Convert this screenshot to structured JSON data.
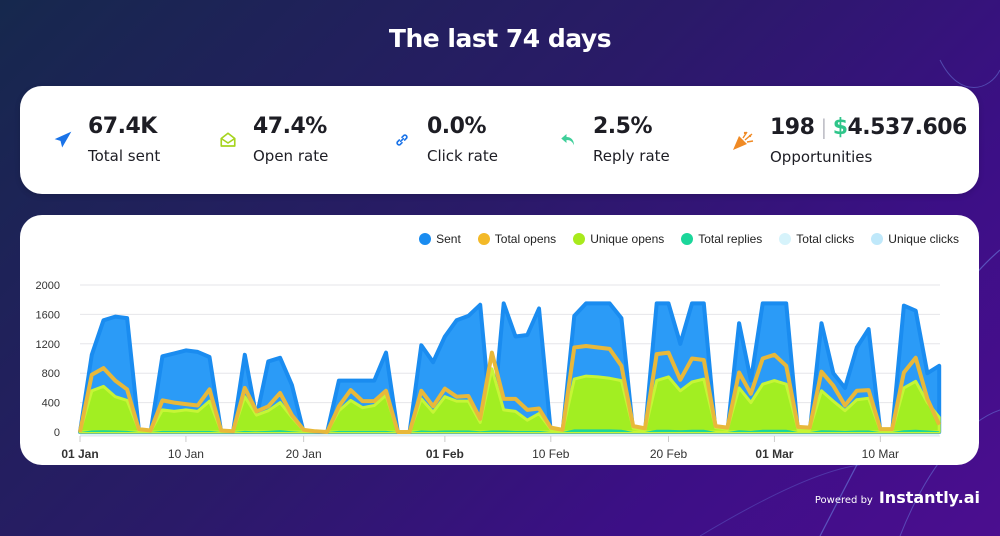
{
  "header": {
    "title": "The last 74 days"
  },
  "stats": [
    {
      "icon": "paper-plane-icon",
      "value": "67.4K",
      "label": "Total sent",
      "color": "#1a73e8"
    },
    {
      "icon": "open-envelope-icon",
      "value": "47.4%",
      "label": "Open rate",
      "color": "#a6d41e"
    },
    {
      "icon": "link-icon",
      "value": "0.0%",
      "label": "Click rate",
      "color": "#1a73e8"
    },
    {
      "icon": "reply-icon",
      "value": "2.5%",
      "label": "Reply rate",
      "color": "#3fcf9a"
    },
    {
      "icon": "party-popper-icon",
      "value": "198",
      "separator": "|",
      "money_symbol": "$",
      "money_value": "4.537.606",
      "label": "Opportunities",
      "color": "#f08a24"
    }
  ],
  "footer": {
    "powered_by": "Powered by",
    "brand": "Instantly.ai"
  },
  "chart_data": {
    "type": "area",
    "title": "",
    "xlabel": "",
    "ylabel": "",
    "ylim": [
      0,
      2000
    ],
    "yticks": [
      "0",
      "400",
      "800",
      "1200",
      "1600",
      "2000"
    ],
    "xticks": [
      {
        "label": "01 Jan",
        "day": 0,
        "bold": true
      },
      {
        "label": "10 Jan",
        "day": 9,
        "bold": false
      },
      {
        "label": "20 Jan",
        "day": 19,
        "bold": false
      },
      {
        "label": "01 Feb",
        "day": 31,
        "bold": true
      },
      {
        "label": "10 Feb",
        "day": 40,
        "bold": false
      },
      {
        "label": "20 Feb",
        "day": 50,
        "bold": false
      },
      {
        "label": "01 Mar",
        "day": 59,
        "bold": true
      },
      {
        "label": "10 Mar",
        "day": 68,
        "bold": false
      }
    ],
    "grid": true,
    "legend_position": "top-right",
    "series": [
      {
        "name": "Sent",
        "color": "#1a8cf0",
        "fill": "#2b9bf7",
        "values": [
          0,
          1050,
          1520,
          1570,
          1550,
          40,
          0,
          1030,
          1070,
          1110,
          1090,
          1020,
          0,
          0,
          1050,
          200,
          960,
          1010,
          640,
          0,
          0,
          0,
          700,
          700,
          700,
          700,
          1080,
          0,
          0,
          1180,
          950,
          1300,
          1520,
          1580,
          1730,
          0,
          1750,
          1300,
          1320,
          1680,
          0,
          0,
          1580,
          1750,
          1750,
          1750,
          1550,
          0,
          0,
          1750,
          1750,
          1200,
          1750,
          1750,
          0,
          0,
          1480,
          700,
          1750,
          1750,
          1750,
          0,
          0,
          1480,
          800,
          600,
          1150,
          1400,
          0,
          0,
          1720,
          1650,
          800,
          900
        ]
      },
      {
        "name": "Total opens",
        "color": "#f3b928",
        "fill": "none",
        "values": [
          0,
          780,
          870,
          700,
          580,
          40,
          20,
          430,
          400,
          380,
          360,
          580,
          20,
          10,
          600,
          280,
          350,
          530,
          230,
          30,
          10,
          0,
          350,
          570,
          420,
          420,
          560,
          0,
          0,
          560,
          350,
          590,
          480,
          490,
          180,
          1080,
          450,
          450,
          300,
          320,
          60,
          30,
          1150,
          1170,
          1150,
          1130,
          900,
          80,
          50,
          1060,
          1080,
          710,
          1000,
          980,
          80,
          60,
          810,
          520,
          1000,
          1050,
          900,
          70,
          60,
          820,
          630,
          360,
          560,
          570,
          40,
          40,
          810,
          1010,
          450,
          100
        ]
      },
      {
        "name": "Unique opens",
        "color": "#a8ea1c",
        "fill": "#a2ee22",
        "values": [
          0,
          560,
          620,
          480,
          430,
          30,
          10,
          300,
          280,
          300,
          280,
          420,
          10,
          5,
          480,
          230,
          290,
          400,
          200,
          20,
          5,
          0,
          290,
          430,
          330,
          360,
          500,
          0,
          0,
          450,
          270,
          480,
          420,
          420,
          130,
          860,
          300,
          280,
          160,
          250,
          40,
          20,
          720,
          760,
          750,
          730,
          700,
          50,
          30,
          700,
          750,
          560,
          680,
          720,
          60,
          40,
          600,
          400,
          650,
          700,
          650,
          40,
          40,
          560,
          420,
          290,
          440,
          460,
          20,
          20,
          600,
          690,
          400,
          200
        ]
      },
      {
        "name": "Total replies",
        "color": "#1bd69a",
        "fill": "#1bd69a",
        "values": [
          0,
          20,
          25,
          20,
          15,
          0,
          0,
          15,
          15,
          15,
          15,
          15,
          0,
          0,
          15,
          10,
          15,
          25,
          10,
          0,
          0,
          0,
          15,
          15,
          15,
          15,
          15,
          0,
          0,
          20,
          15,
          20,
          20,
          20,
          10,
          20,
          20,
          15,
          15,
          15,
          0,
          0,
          35,
          35,
          35,
          35,
          30,
          0,
          0,
          30,
          30,
          25,
          30,
          30,
          0,
          0,
          25,
          15,
          30,
          30,
          30,
          0,
          0,
          25,
          20,
          15,
          20,
          20,
          0,
          0,
          25,
          30,
          20,
          10
        ]
      },
      {
        "name": "Total clicks",
        "color": "#d6f3fb",
        "fill": "none",
        "values": []
      },
      {
        "name": "Unique clicks",
        "color": "#bfe8fa",
        "fill": "none",
        "values": []
      }
    ]
  }
}
